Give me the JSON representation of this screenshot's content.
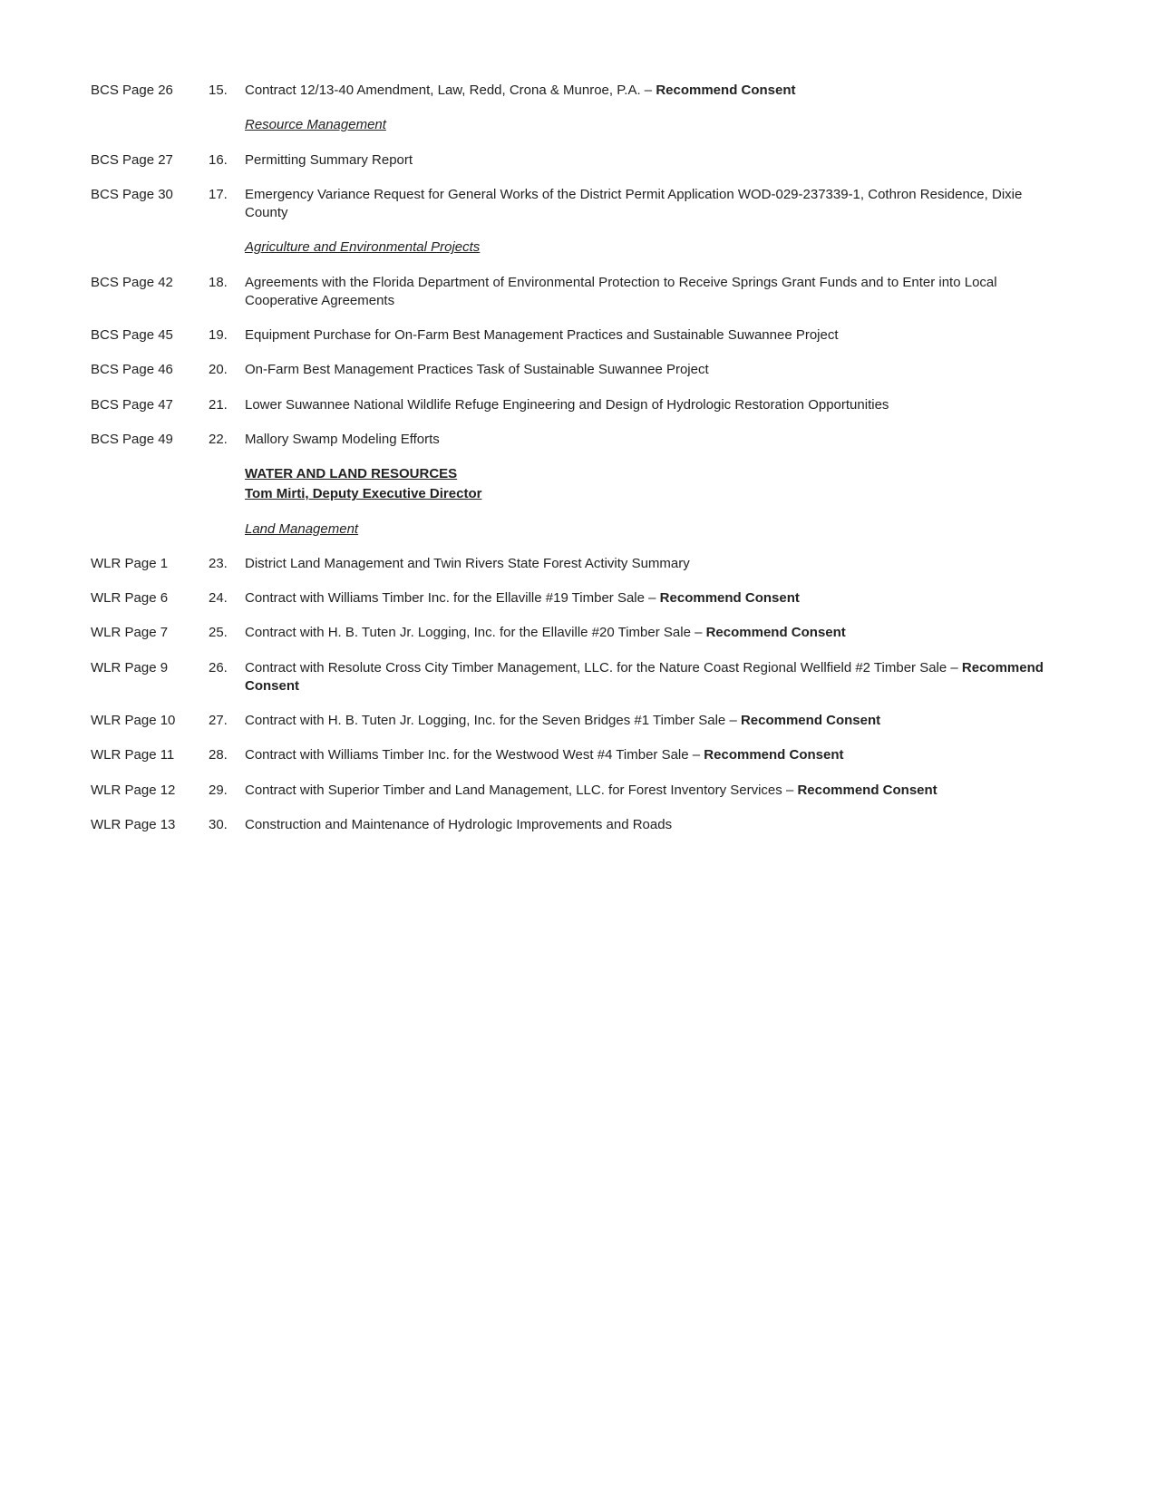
{
  "items": [
    {
      "page": "BCS Page 26",
      "num": "15.",
      "text": "Contract 12/13-40 Amendment, Law, Redd, Crona & Munroe, P.A. – ",
      "boldSuffix": "Recommend Consent"
    },
    {
      "subheading": "Resource Management"
    },
    {
      "page": "BCS Page 27",
      "num": "16.",
      "text": "Permitting Summary Report"
    },
    {
      "page": "BCS Page 30",
      "num": "17.",
      "text": "Emergency Variance Request for General Works of the District Permit Application WOD-029-237339-1, Cothron Residence, Dixie County"
    },
    {
      "subheading": "Agriculture and Environmental Projects"
    },
    {
      "page": "BCS Page 42",
      "num": "18.",
      "text": "Agreements with the Florida Department of Environmental Protection to Receive Springs Grant Funds and to Enter into Local Cooperative Agreements"
    },
    {
      "page": "BCS Page 45",
      "num": "19.",
      "text": "Equipment Purchase for On-Farm Best Management Practices and Sustainable Suwannee Project"
    },
    {
      "page": "BCS Page 46",
      "num": "20.",
      "text": "On-Farm Best Management Practices Task of Sustainable Suwannee Project"
    },
    {
      "page": "BCS Page 47",
      "num": "21.",
      "text": "Lower Suwannee National Wildlife Refuge Engineering and Design of Hydrologic Restoration Opportunities"
    },
    {
      "page": "BCS Page 49",
      "num": "22.",
      "text": "Mallory Swamp Modeling Efforts"
    },
    {
      "sectionHeading": "WATER AND LAND RESOURCES",
      "sectionSub": "Tom Mirti, Deputy Executive Director"
    },
    {
      "subheading": "Land Management"
    },
    {
      "page": "WLR Page 1",
      "num": "23.",
      "text": "District Land Management and Twin Rivers State Forest Activity Summary"
    },
    {
      "page": "WLR Page 6",
      "num": "24.",
      "text": "Contract with Williams Timber Inc. for the Ellaville #19 Timber Sale – ",
      "boldSuffix": "Recommend Consent"
    },
    {
      "page": "WLR Page 7",
      "num": "25.",
      "text": "Contract with H. B. Tuten Jr. Logging, Inc. for the Ellaville #20 Timber Sale – ",
      "boldSuffix": "Recommend Consent"
    },
    {
      "page": "WLR Page 9",
      "num": "26.",
      "text": "Contract with Resolute Cross City Timber Management, LLC. for the Nature Coast Regional Wellfield #2 Timber Sale – ",
      "boldSuffix": "Recommend Consent"
    },
    {
      "page": "WLR Page 10",
      "num": "27.",
      "text": "Contract with H. B. Tuten Jr. Logging, Inc. for the Seven Bridges #1 Timber Sale – ",
      "boldSuffix": "Recommend Consent"
    },
    {
      "page": "WLR Page 11",
      "num": "28.",
      "text": "Contract with Williams Timber Inc. for the Westwood West #4 Timber Sale – ",
      "boldSuffix": "Recommend Consent"
    },
    {
      "page": "WLR Page 12",
      "num": "29.",
      "text": "Contract with Superior Timber and Land Management, LLC. for Forest Inventory Services – ",
      "boldSuffix": "Recommend Consent"
    },
    {
      "page": "WLR Page 13",
      "num": "30.",
      "text": "Construction and Maintenance of Hydrologic Improvements and Roads"
    }
  ]
}
